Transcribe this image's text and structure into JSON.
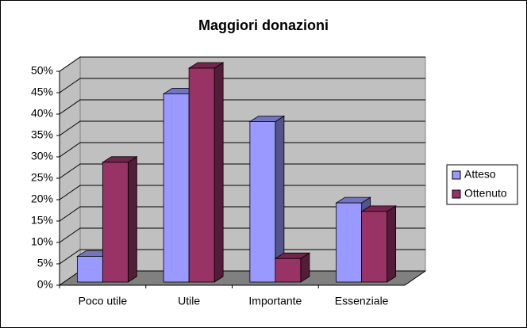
{
  "chart_data": {
    "type": "bar3d",
    "title": "Maggiori donazioni",
    "categories": [
      "Poco utile",
      "Utile",
      "Importante",
      "Essenziale"
    ],
    "series": [
      {
        "name": "Atteso",
        "color": "#9999ff",
        "values": [
          6,
          44,
          37.5,
          18.5
        ]
      },
      {
        "name": "Ottenuto",
        "color": "#993366",
        "values": [
          28,
          50,
          5.5,
          16.5
        ]
      }
    ],
    "ylim": [
      0,
      50
    ],
    "yticks": [
      {
        "value": 0,
        "label": "0%"
      },
      {
        "value": 5,
        "label": "5%"
      },
      {
        "value": 10,
        "label": "10%"
      },
      {
        "value": 15,
        "label": "15%"
      },
      {
        "value": 20,
        "label": "20%"
      },
      {
        "value": 25,
        "label": "25%"
      },
      {
        "value": 30,
        "label": "30%"
      },
      {
        "value": 35,
        "label": "35%"
      },
      {
        "value": 40,
        "label": "40%"
      },
      {
        "value": 45,
        "label": "45%"
      },
      {
        "value": 50,
        "label": "50%"
      }
    ],
    "grid": true,
    "legend": "right"
  }
}
